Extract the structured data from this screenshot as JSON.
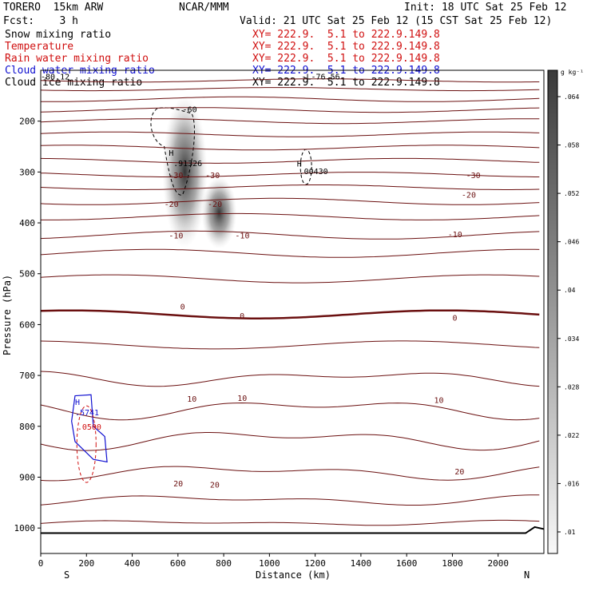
{
  "header": {
    "model": "TORERO  15km ARW",
    "org": "NCAR/MMM",
    "init": "Init: 18 UTC Sat 25 Feb 12",
    "fcst": "Fcst:    3 h",
    "valid": "Valid: 21 UTC Sat 25 Feb 12 (15 CST Sat 25 Feb 12)",
    "fields": [
      {
        "name": "Snow mixing ratio",
        "xy": "XY= 222.9.  5.1 to 222.9.149.8",
        "color": "#000000"
      },
      {
        "name": "Temperature",
        "xy": "XY= 222.9.  5.1 to 222.9.149.8",
        "color": "#d01010"
      },
      {
        "name": "Rain water mixing ratio",
        "xy": "XY= 222.9.  5.1 to 222.9.149.8",
        "color": "#d01010"
      },
      {
        "name": "Cloud water mixing ratio",
        "xy": "XY= 222.9.  5.1 to 222.9.149.8",
        "color": "#1010d0"
      },
      {
        "name": "Cloud ice mixing ratio",
        "xy": "XY= 222.9.  5.1 to 222.9.149.8",
        "color": "#000000"
      }
    ]
  },
  "chart_data": {
    "type": "contour",
    "xlabel": "Distance (km)",
    "ylabel": "Pressure (hPa)",
    "xlim": [
      0,
      2200
    ],
    "ylim": [
      100,
      1050
    ],
    "xticks": [
      0,
      200,
      400,
      600,
      800,
      1000,
      1200,
      1400,
      1600,
      1800,
      2000
    ],
    "yticks": [
      200,
      300,
      400,
      500,
      600,
      700,
      800,
      900,
      1000
    ],
    "x_end_labels": {
      "left": "S",
      "right": "N"
    },
    "colorbar": {
      "unit": "g kg⁻¹",
      "ticks": [
        ".01",
        ".016",
        ".022",
        ".028",
        ".034",
        ".04",
        ".046",
        ".052",
        ".058",
        ".064"
      ]
    },
    "isotherms": [
      {
        "label": "-80.24",
        "pressure": 120,
        "wiggle": 2
      },
      {
        "label": "",
        "pressure": 137,
        "wiggle": 2
      },
      {
        "label": "",
        "pressure": 157,
        "wiggle": 3
      },
      {
        "label": "-60",
        "pressure": 178,
        "wiggle": 3
      },
      {
        "label": "",
        "pressure": 200,
        "wiggle": 3
      },
      {
        "label": "",
        "pressure": 226,
        "wiggle": 3
      },
      {
        "label": "",
        "pressure": 252,
        "wiggle": 3
      },
      {
        "label": "",
        "pressure": 278,
        "wiggle": 3
      },
      {
        "label": "-30",
        "pressure": 305,
        "wiggle": 3
      },
      {
        "label": "",
        "pressure": 330,
        "wiggle": 3
      },
      {
        "label": "-20",
        "pressure": 358,
        "wiggle": 4
      },
      {
        "label": "",
        "pressure": 388,
        "wiggle": 4
      },
      {
        "label": "-10",
        "pressure": 424,
        "wiggle": 5
      },
      {
        "label": "",
        "pressure": 460,
        "wiggle": 5
      },
      {
        "label": "",
        "pressure": 510,
        "wiggle": 5
      },
      {
        "label": "0",
        "pressure": 580,
        "wiggle": 5
      },
      {
        "label": "",
        "pressure": 640,
        "wiggle": 5
      },
      {
        "label": "10",
        "pressure": 705,
        "wiggle": 6
      },
      {
        "label": "",
        "pressure": 765,
        "wiggle": 8
      },
      {
        "label": "",
        "pressure": 825,
        "wiggle": 8
      },
      {
        "label": "20",
        "pressure": 890,
        "wiggle": 6
      },
      {
        "label": "",
        "pressure": 945,
        "wiggle": 4
      },
      {
        "label": "",
        "pressure": 990,
        "wiggle": 2
      }
    ],
    "annotations": [
      {
        "text": "-80.12",
        "x": 0,
        "pressure": 112,
        "color": "#000000"
      },
      {
        "text": "-L-76.56",
        "x": 1140,
        "pressure": 112,
        "color": "#000000"
      },
      {
        "text": "-60",
        "x": 620,
        "pressure": 176,
        "color": "#000000"
      },
      {
        "text": "H",
        "x": 560,
        "pressure": 262,
        "color": "#000000"
      },
      {
        "text": ".91326",
        "x": 580,
        "pressure": 282,
        "color": "#000000"
      },
      {
        "text": "-30",
        "x": 560,
        "pressure": 306,
        "color": "#6b1010"
      },
      {
        "text": "-30",
        "x": 720,
        "pressure": 306,
        "color": "#6b1010"
      },
      {
        "text": "-20",
        "x": 540,
        "pressure": 362,
        "color": "#6b1010"
      },
      {
        "text": "-20",
        "x": 730,
        "pressure": 362,
        "color": "#6b1010"
      },
      {
        "text": "-10",
        "x": 560,
        "pressure": 424,
        "color": "#6b1010"
      },
      {
        "text": "-10",
        "x": 850,
        "pressure": 424,
        "color": "#6b1010"
      },
      {
        "text": "H",
        "x": 1120,
        "pressure": 283,
        "color": "#000000"
      },
      {
        "text": ".00430",
        "x": 1130,
        "pressure": 298,
        "color": "#000000"
      },
      {
        "text": "-30",
        "x": 1860,
        "pressure": 306,
        "color": "#6b1010"
      },
      {
        "text": "-20",
        "x": 1840,
        "pressure": 344,
        "color": "#6b1010"
      },
      {
        "text": "-10",
        "x": 1780,
        "pressure": 422,
        "color": "#6b1010"
      },
      {
        "text": "0",
        "x": 610,
        "pressure": 564,
        "color": "#6b1010"
      },
      {
        "text": "0",
        "x": 870,
        "pressure": 582,
        "color": "#6b1010"
      },
      {
        "text": "0",
        "x": 1800,
        "pressure": 586,
        "color": "#6b1010"
      },
      {
        "text": "10",
        "x": 640,
        "pressure": 745,
        "color": "#6b1010"
      },
      {
        "text": "10",
        "x": 860,
        "pressure": 744,
        "color": "#6b1010"
      },
      {
        "text": "10",
        "x": 1720,
        "pressure": 748,
        "color": "#6b1010"
      },
      {
        "text": "20",
        "x": 580,
        "pressure": 912,
        "color": "#6b1010"
      },
      {
        "text": "20",
        "x": 740,
        "pressure": 914,
        "color": "#6b1010"
      },
      {
        "text": "20",
        "x": 1810,
        "pressure": 888,
        "color": "#6b1010"
      },
      {
        "text": "H",
        "x": 150,
        "pressure": 752,
        "color": "#1010d0"
      },
      {
        "text": ".5741",
        "x": 150,
        "pressure": 772,
        "color": "#1010d0"
      },
      {
        "text": ".0500",
        "x": 160,
        "pressure": 800,
        "color": "#d01010"
      }
    ],
    "snow_max": [
      {
        "x": 630,
        "pressure": 300,
        "rx": 28,
        "ry": 95
      },
      {
        "x": 780,
        "pressure": 380,
        "rx": 22,
        "ry": 45
      }
    ]
  }
}
